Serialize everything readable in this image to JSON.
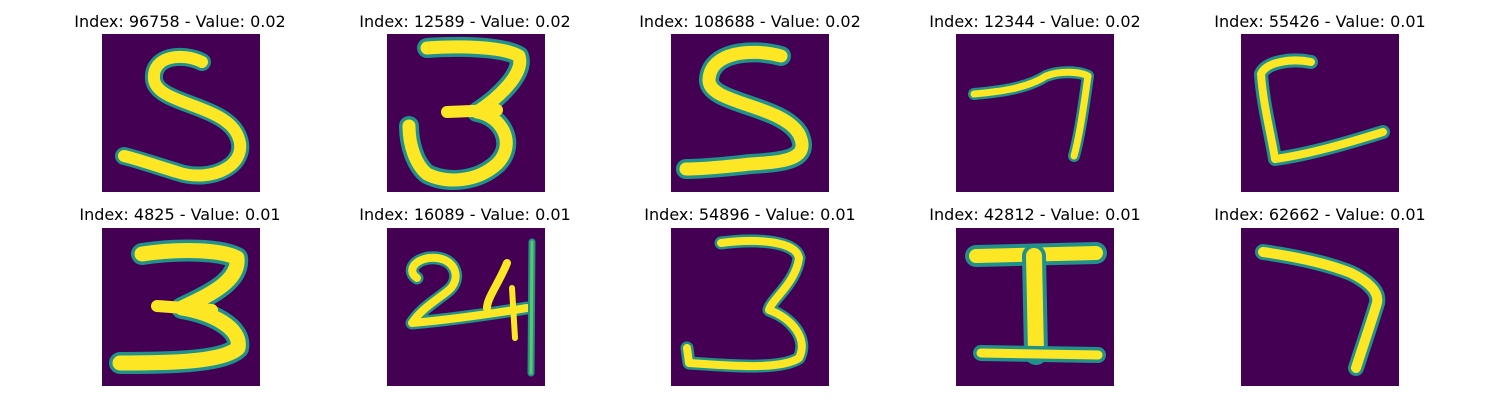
{
  "colors": {
    "background": "#440154",
    "stroke": "#fde725",
    "edge": "#21918c"
  },
  "panels": [
    {
      "title": "Index: 96758 - Value: 0.02",
      "glyph": "digit-5-icon"
    },
    {
      "title": "Index: 12589 - Value: 0.02",
      "glyph": "digit-3-icon"
    },
    {
      "title": "Index: 108688 - Value: 0.02",
      "glyph": "digit-5-icon"
    },
    {
      "title": "Index: 12344 - Value: 0.02",
      "glyph": "digit-7-icon"
    },
    {
      "title": "Index: 55426 - Value: 0.01",
      "glyph": "letter-c-icon"
    },
    {
      "title": "Index: 4825 - Value: 0.01",
      "glyph": "digit-3-icon"
    },
    {
      "title": "Index: 16089 - Value: 0.01",
      "glyph": "digits-24-icon"
    },
    {
      "title": "Index: 54896 - Value: 0.01",
      "glyph": "digit-3-icon"
    },
    {
      "title": "Index: 42812 - Value: 0.01",
      "glyph": "letter-i-icon"
    },
    {
      "title": "Index: 62662 - Value: 0.01",
      "glyph": "digit-7-icon"
    }
  ]
}
